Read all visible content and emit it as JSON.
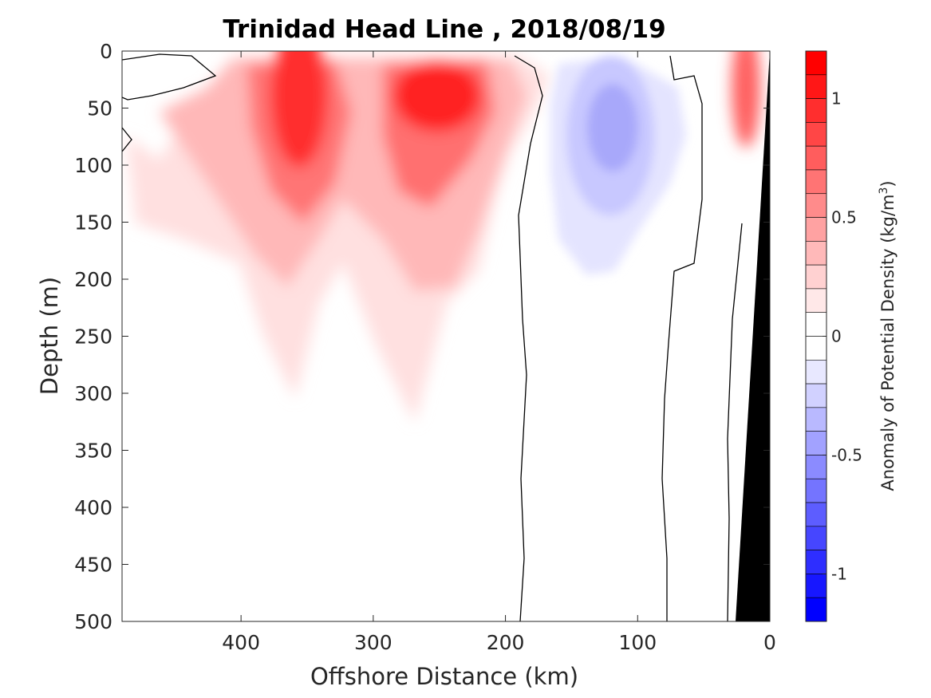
{
  "chart_data": {
    "type": "heatmap",
    "title": "Trinidad Head Line , 2018/08/19",
    "xlabel": "Offshore Distance (km)",
    "ylabel": "Depth (m)",
    "xlim": [
      490,
      0
    ],
    "ylim": [
      0,
      500
    ],
    "x_ticks": [
      400,
      300,
      200,
      100,
      0
    ],
    "y_ticks": [
      0,
      50,
      100,
      150,
      200,
      250,
      300,
      350,
      400,
      450,
      500
    ],
    "colorbar": {
      "label_main": "Anomaly of Potential Density (kg/m",
      "label_sup": "3",
      "label_end": ")",
      "range": [
        -1.2,
        1.2
      ],
      "step": 0.1,
      "ticks": [
        1,
        0.5,
        0,
        -0.5,
        -1
      ],
      "tick_labels": [
        "1",
        "0.5",
        "0",
        "-0.5",
        "-1"
      ],
      "low_color": "#0000ff",
      "high_color": "#ff0000",
      "mid_color": "#ffffff"
    },
    "features": [
      {
        "type": "positive",
        "center_km": 355,
        "center_depth_m": 40,
        "peak_anomaly": 1.1
      },
      {
        "type": "positive",
        "center_km": 255,
        "center_depth_m": 35,
        "peak_anomaly": 1.2
      },
      {
        "type": "positive",
        "center_km": 15,
        "center_depth_m": 15,
        "peak_anomaly": 1.2
      },
      {
        "type": "negative",
        "center_km": 125,
        "center_depth_m": 80,
        "peak_anomaly": -0.4
      }
    ],
    "shelf_color": "#000000",
    "grid": false
  }
}
